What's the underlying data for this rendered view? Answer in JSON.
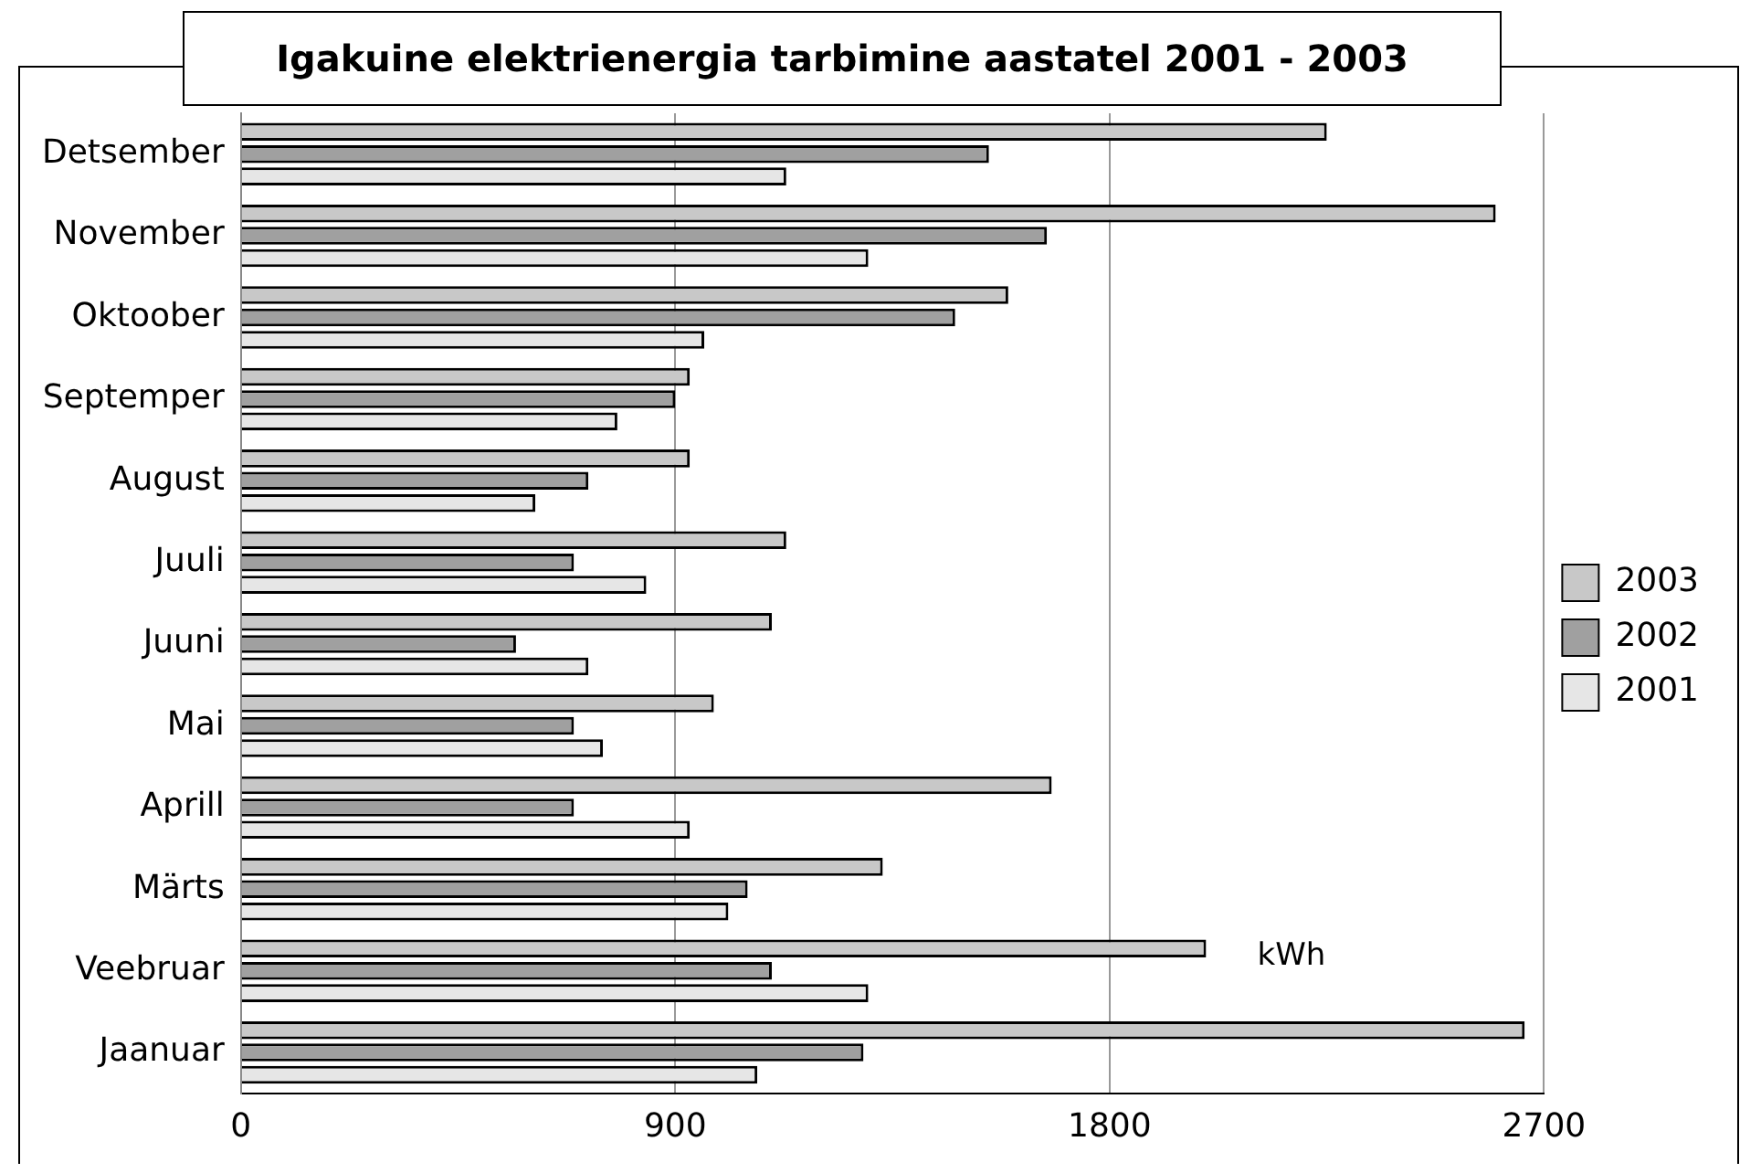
{
  "chart_data": {
    "type": "bar",
    "orientation": "horizontal",
    "title": "Igakuine elektrienergia tarbimine aastatel 2001 - 2003",
    "categories": [
      "Detsember",
      "November",
      "Oktoober",
      "Septemper",
      "August",
      "Juuli",
      "Juuni",
      "Mai",
      "Aprill",
      "Märts",
      "Veebruar",
      "Jaanuar"
    ],
    "series": [
      {
        "name": "2003",
        "color": "#c8c8c8",
        "values": [
          2250,
          2600,
          1590,
          930,
          930,
          1130,
          1100,
          980,
          1680,
          1330,
          2000,
          2660
        ]
      },
      {
        "name": "2002",
        "color": "#a0a0a0",
        "values": [
          1550,
          1670,
          1480,
          900,
          720,
          690,
          570,
          690,
          690,
          1050,
          1100,
          1290
        ]
      },
      {
        "name": "2001",
        "color": "#e6e6e6",
        "values": [
          1130,
          1300,
          960,
          780,
          610,
          840,
          720,
          750,
          930,
          1010,
          1300,
          1070
        ]
      }
    ],
    "xlim": [
      0,
      2700
    ],
    "xticks": [
      0,
      900,
      1800,
      2700
    ],
    "grid": "x",
    "legend": "right",
    "annotations": [
      "kWh"
    ]
  }
}
